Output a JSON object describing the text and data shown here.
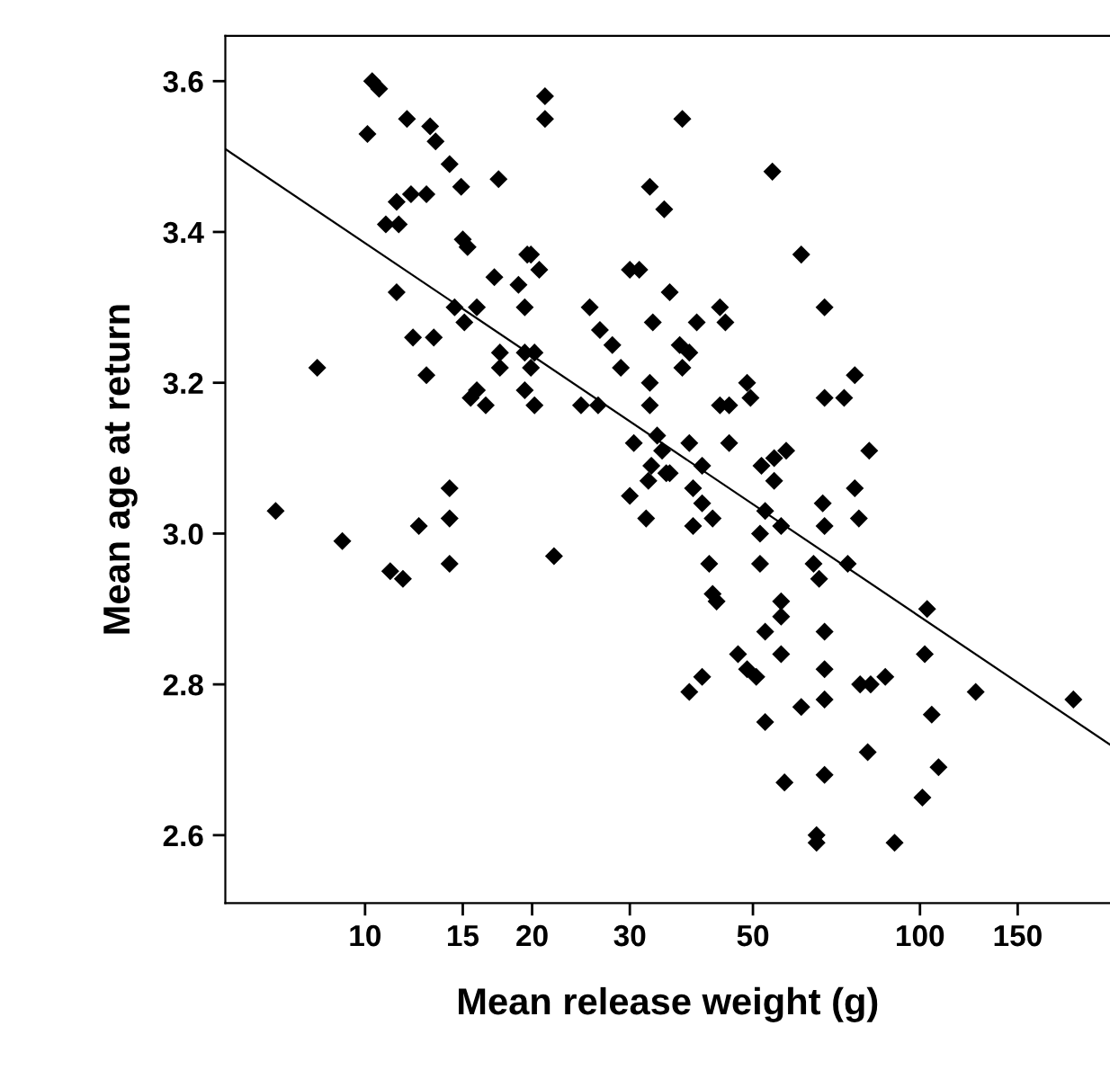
{
  "chart_data": {
    "type": "scatter",
    "xlabel": "Mean release weight (g)",
    "ylabel": "Mean age at return",
    "log": "x",
    "grid": false,
    "legend": false,
    "xlim": [
      5.6,
      220
    ],
    "ylim": [
      2.51,
      3.66
    ],
    "xticks": [
      10,
      15,
      20,
      30,
      50,
      100,
      150
    ],
    "yticks": [
      {
        "value": 2.6,
        "label": "2.6"
      },
      {
        "value": 2.8,
        "label": "2.8"
      },
      {
        "value": 3.0,
        "label": "3.0"
      },
      {
        "value": 3.2,
        "label": "3.2"
      },
      {
        "value": 3.4,
        "label": "3.4"
      },
      {
        "value": 3.6,
        "label": "3.6"
      }
    ],
    "series": [
      {
        "marker": "diamond",
        "color": "#000000",
        "x": [
          10.3,
          10.6,
          11.9,
          10.1,
          13.1,
          13.4,
          14.2,
          14.9,
          17.4,
          11.4,
          12.1,
          12.9,
          10.9,
          11.5,
          15.0,
          15.3,
          11.4,
          17.1,
          18.9,
          19.6,
          14.5,
          15.1,
          15.9,
          19.4,
          12.2,
          13.3,
          17.5,
          17.5,
          19.4,
          8.2,
          12.9,
          15.5,
          15.9,
          16.5,
          19.4,
          6.9,
          9.1,
          11.1,
          11.7,
          12.5,
          14.2,
          14.2,
          14.2,
          21.1,
          21.1,
          37.3,
          54.2,
          32.6,
          34.6,
          61.1,
          19.9,
          20.6,
          30.0,
          31.2,
          35.4,
          25.4,
          26.5,
          27.9,
          33.0,
          39.6,
          43.6,
          44.6,
          67.3,
          20.2,
          19.9,
          20.2,
          28.9,
          32.6,
          36.9,
          38.4,
          37.3,
          24.5,
          26.3,
          32.6,
          43.6,
          45.3,
          48.8,
          49.5,
          67.3,
          30.5,
          33.6,
          34.3,
          38.4,
          40.5,
          45.3,
          32.8,
          34.9,
          51.8,
          54.6,
          57.4,
          54.6,
          21.9,
          30.0,
          32.4,
          35.4,
          32.1,
          39.0,
          40.5,
          39.0,
          42.3,
          41.7,
          42.3,
          43.0,
          52.6,
          56.2,
          51.5,
          51.5,
          64.3,
          65.8,
          66.8,
          67.3,
          56.2,
          56.2,
          52.6,
          56.2,
          67.3,
          67.3,
          47.0,
          48.8,
          50.7,
          40.5,
          38.4,
          61.1,
          67.3,
          52.6,
          57.0,
          67.3,
          65.1,
          65.1,
          76.3,
          77.6,
          74.1,
          103,
          102,
          78,
          81.5,
          86.6,
          126,
          189,
          105,
          80.5,
          108,
          101,
          90,
          76.3,
          73,
          81
        ],
        "values": [
          3.6,
          3.59,
          3.55,
          3.53,
          3.54,
          3.52,
          3.49,
          3.46,
          3.47,
          3.44,
          3.45,
          3.45,
          3.41,
          3.41,
          3.39,
          3.38,
          3.32,
          3.34,
          3.33,
          3.37,
          3.3,
          3.28,
          3.3,
          3.3,
          3.26,
          3.26,
          3.24,
          3.22,
          3.24,
          3.22,
          3.21,
          3.18,
          3.19,
          3.17,
          3.19,
          3.03,
          2.99,
          2.95,
          2.94,
          3.01,
          3.06,
          3.02,
          2.96,
          3.58,
          3.55,
          3.55,
          3.48,
          3.46,
          3.43,
          3.37,
          3.37,
          3.35,
          3.35,
          3.35,
          3.32,
          3.3,
          3.27,
          3.25,
          3.28,
          3.28,
          3.3,
          3.28,
          3.3,
          3.24,
          3.22,
          3.17,
          3.22,
          3.2,
          3.25,
          3.24,
          3.22,
          3.17,
          3.17,
          3.17,
          3.17,
          3.17,
          3.2,
          3.18,
          3.18,
          3.12,
          3.13,
          3.11,
          3.12,
          3.09,
          3.12,
          3.09,
          3.08,
          3.09,
          3.1,
          3.11,
          3.07,
          2.97,
          3.05,
          3.07,
          3.08,
          3.02,
          3.06,
          3.04,
          3.01,
          3.02,
          2.96,
          2.92,
          2.91,
          3.03,
          3.01,
          3.0,
          2.96,
          2.96,
          2.94,
          3.04,
          3.01,
          2.91,
          2.89,
          2.87,
          2.84,
          2.87,
          2.82,
          2.84,
          2.82,
          2.81,
          2.81,
          2.79,
          2.77,
          2.78,
          2.75,
          2.67,
          2.68,
          2.6,
          2.59,
          3.06,
          3.02,
          2.96,
          2.9,
          2.84,
          2.8,
          2.8,
          2.81,
          2.79,
          2.78,
          2.76,
          2.71,
          2.69,
          2.65,
          2.59,
          3.21,
          3.18,
          3.11
        ]
      },
      {
        "type": "line",
        "marker": "none",
        "color": "#000000",
        "x": [
          5.6,
          220
        ],
        "values": [
          3.51,
          2.72
        ]
      }
    ]
  }
}
